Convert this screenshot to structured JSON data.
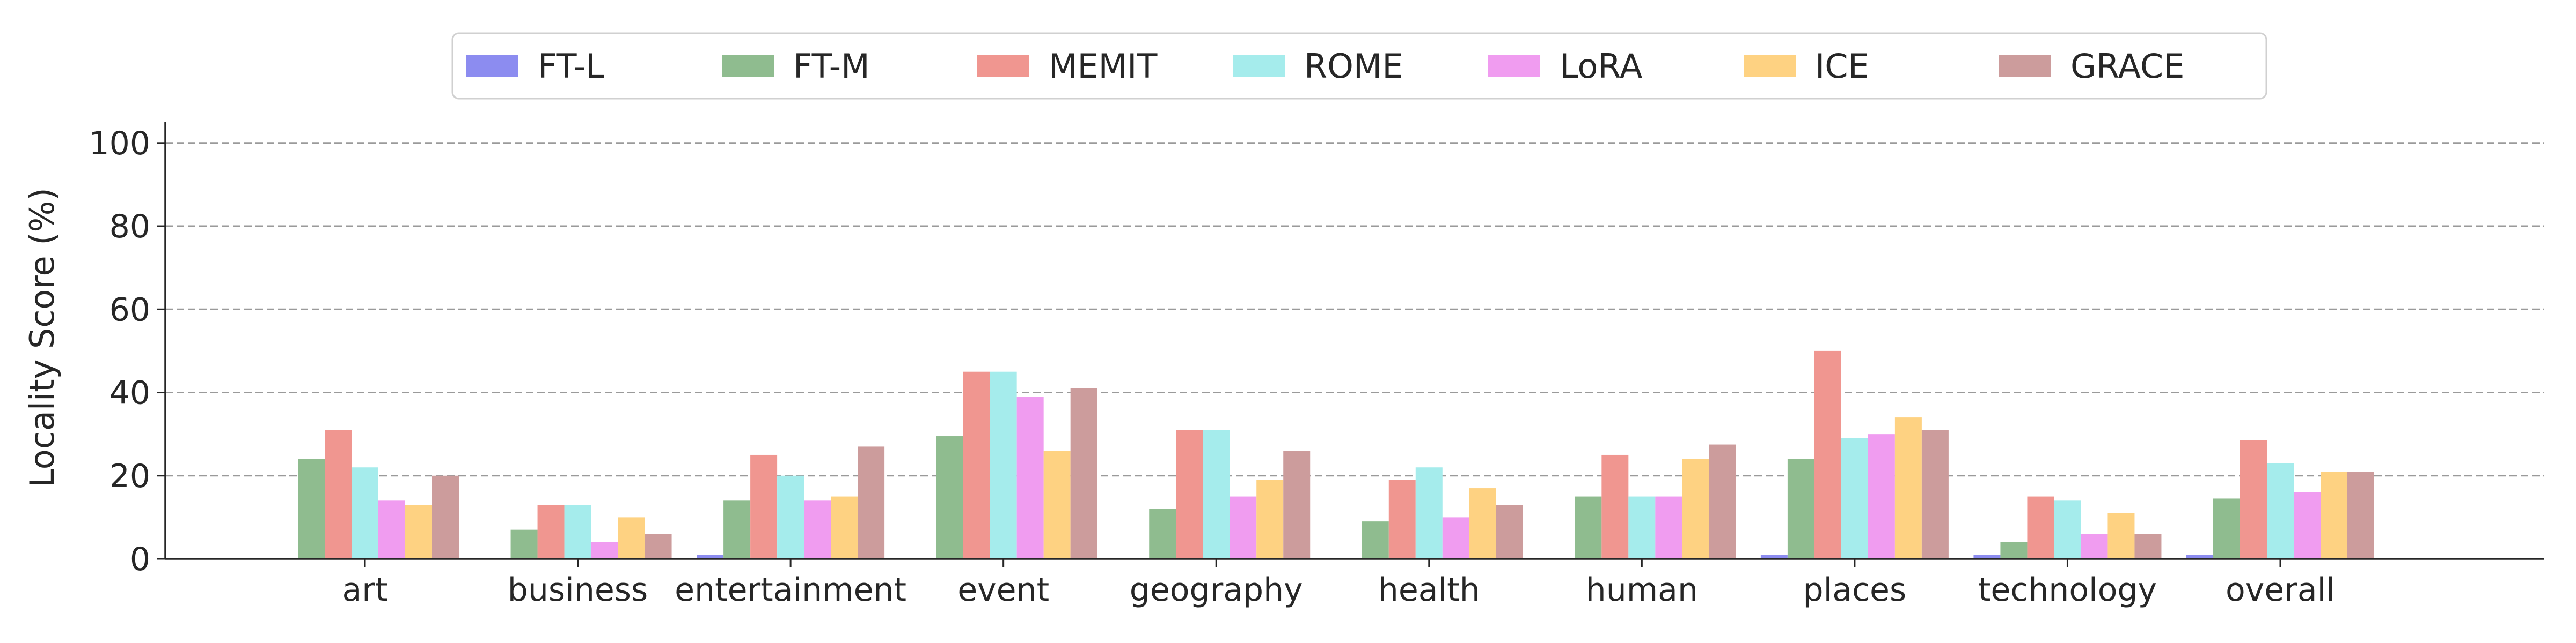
{
  "chart_data": {
    "type": "bar",
    "title": "",
    "xlabel": "",
    "ylabel": "Locality Score (%)",
    "ylim": [
      0,
      105
    ],
    "yticks": [
      0,
      20,
      40,
      60,
      80,
      100
    ],
    "grid": "horizontal dashed",
    "legend_position": "top-center",
    "categories": [
      "art",
      "business",
      "entertainment",
      "event",
      "geography",
      "health",
      "human",
      "places",
      "technology",
      "overall"
    ],
    "series": [
      {
        "name": "FT-L",
        "color": "#8c8cf0",
        "values": [
          0,
          0,
          1,
          0,
          0,
          0,
          0,
          1,
          1,
          1
        ]
      },
      {
        "name": "FT-M",
        "color": "#8fbc8f",
        "values": [
          24,
          7,
          14,
          29.5,
          12,
          9,
          15,
          24,
          4,
          14.5
        ]
      },
      {
        "name": "MEMIT",
        "color": "#f09690",
        "values": [
          31,
          13,
          25,
          45,
          31,
          19,
          25,
          50,
          15,
          28.5
        ]
      },
      {
        "name": "ROME",
        "color": "#a5ecec",
        "values": [
          22,
          13,
          20,
          45,
          31,
          22,
          15,
          29,
          14,
          23
        ]
      },
      {
        "name": "LoRA",
        "color": "#f09cf0",
        "values": [
          14,
          4,
          14,
          39,
          15,
          10,
          15,
          30,
          6,
          16
        ]
      },
      {
        "name": "ICE",
        "color": "#fed282",
        "values": [
          13,
          10,
          15,
          26,
          19,
          17,
          24,
          34,
          11,
          21
        ]
      },
      {
        "name": "GRACE",
        "color": "#cc9c9c",
        "values": [
          20,
          6,
          27,
          41,
          26,
          13,
          27.5,
          31,
          6,
          21
        ]
      }
    ]
  }
}
